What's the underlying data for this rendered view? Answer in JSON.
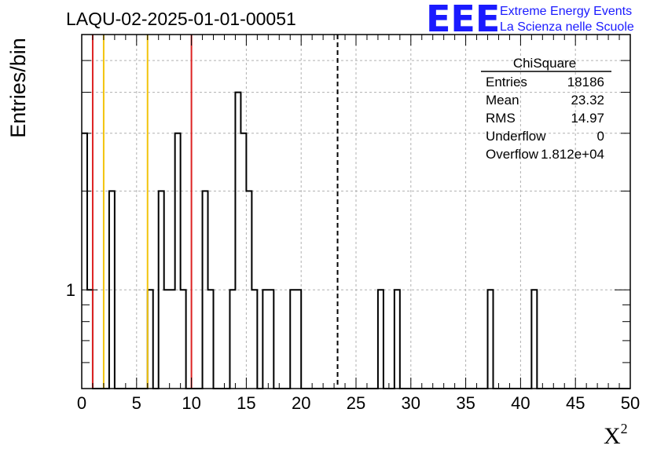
{
  "title": "LAQU-02-2025-01-01-00051",
  "logo": {
    "mark": "EEE",
    "line1": "Extreme Energy Events",
    "line2": "La Scienza nelle Scuole",
    "color": "#1a1aff"
  },
  "stats": {
    "name": "ChiSquare",
    "rows": [
      {
        "label": "Entries",
        "value": "18186"
      },
      {
        "label": "Mean",
        "value": "23.32"
      },
      {
        "label": "RMS",
        "value": "14.97"
      },
      {
        "label": "Underflow",
        "value": "0"
      },
      {
        "label": "Overflow",
        "value": "1.812e+04"
      }
    ]
  },
  "chart_data": {
    "type": "histogram",
    "xlabel": "X",
    "xlabel_sup": "2",
    "ylabel": "Entries/bin",
    "xlim": [
      0,
      50
    ],
    "ylim": [
      0.5,
      6
    ],
    "y_scale": "log",
    "x_ticks": [
      0,
      5,
      10,
      15,
      20,
      25,
      30,
      35,
      40,
      45,
      50
    ],
    "y_tick_labels": [
      {
        "value": 1,
        "label": "1"
      }
    ],
    "bin_width": 0.5,
    "bin_start": 0,
    "counts": [
      3,
      1,
      0,
      0,
      0,
      2,
      0,
      0,
      0,
      0,
      0,
      0,
      1,
      0,
      2,
      1,
      1,
      3,
      1,
      0,
      0,
      0,
      2,
      1,
      0,
      0,
      0,
      1,
      4,
      3,
      2,
      1,
      0,
      1,
      1,
      0,
      0,
      0,
      1,
      1,
      0,
      0,
      0,
      0,
      0,
      0,
      0,
      0,
      0,
      0,
      0,
      0,
      0,
      0,
      1,
      0,
      0,
      1,
      0,
      0,
      0,
      0,
      0,
      0,
      0,
      0,
      0,
      0,
      0,
      0,
      0,
      0,
      0,
      0,
      1,
      0,
      0,
      0,
      0,
      0,
      0,
      0,
      1,
      0,
      0,
      0,
      0,
      0,
      0,
      0,
      0,
      0,
      0,
      0,
      0,
      0,
      0,
      0,
      0,
      0
    ],
    "grid": true,
    "vertical_lines": [
      {
        "x": 1,
        "color": "#dd2222",
        "style": "solid"
      },
      {
        "x": 2,
        "color": "#f2c40c",
        "style": "solid"
      },
      {
        "x": 6,
        "color": "#f2c40c",
        "style": "solid"
      },
      {
        "x": 10,
        "color": "#dd2222",
        "style": "solid"
      },
      {
        "x": 23.32,
        "color": "#000000",
        "style": "dashed"
      }
    ]
  }
}
